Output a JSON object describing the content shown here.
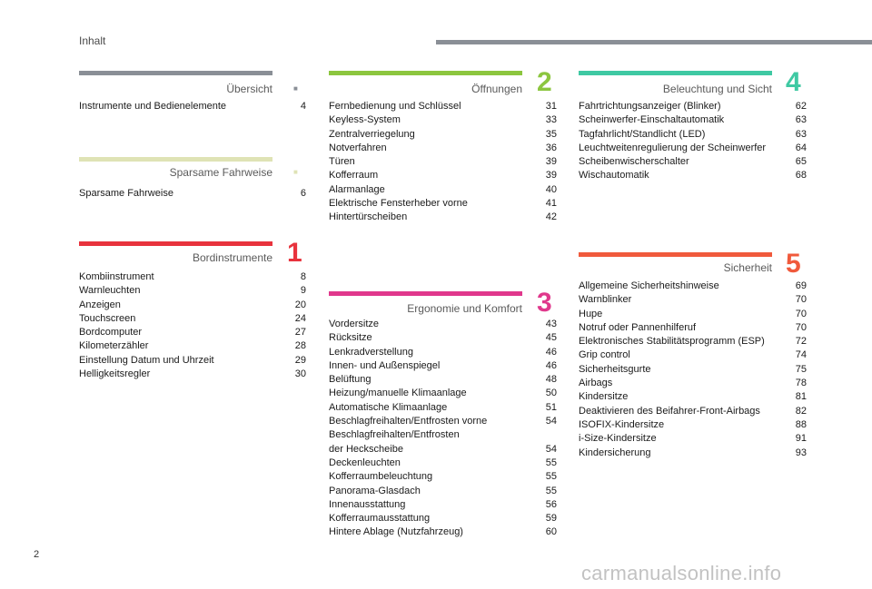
{
  "header": {
    "title": "Inhalt"
  },
  "page_number": "2",
  "watermark": "carmanualsonline.info",
  "sections": {
    "uebersicht": {
      "title": "Übersicht",
      "number": "",
      "color": "#8a8f96",
      "items": [
        {
          "label": "Instrumente und Bedienelemente",
          "page": "4"
        }
      ]
    },
    "sparsame": {
      "title": "Sparsame Fahrweise",
      "number": "",
      "color": "#dfe3b5",
      "items": [
        {
          "label": "Sparsame Fahrweise",
          "page": "6"
        }
      ]
    },
    "bordinstrumente": {
      "title": "Bordinstrumente",
      "number": "1",
      "color": "#e8333d",
      "items": [
        {
          "label": "Kombiinstrument",
          "page": "8"
        },
        {
          "label": "Warnleuchten",
          "page": "9"
        },
        {
          "label": "Anzeigen",
          "page": "20"
        },
        {
          "label": "Touchscreen",
          "page": "24"
        },
        {
          "label": "Bordcomputer",
          "page": "27"
        },
        {
          "label": "Kilometerzähler",
          "page": "28"
        },
        {
          "label": "Einstellung Datum und Uhrzeit",
          "page": "29"
        },
        {
          "label": "Helligkeitsregler",
          "page": "30"
        }
      ]
    },
    "oeffnungen": {
      "title": "Öffnungen",
      "number": "2",
      "color": "#8cc63f",
      "items": [
        {
          "label": "Fernbedienung und Schlüssel",
          "page": "31"
        },
        {
          "label": "Keyless-System",
          "page": "33"
        },
        {
          "label": "Zentralverriegelung",
          "page": "35"
        },
        {
          "label": "Notverfahren",
          "page": "36"
        },
        {
          "label": "Türen",
          "page": "39"
        },
        {
          "label": "Kofferraum",
          "page": "39"
        },
        {
          "label": "Alarmanlage",
          "page": "40"
        },
        {
          "label": "Elektrische Fensterheber vorne",
          "page": "41"
        },
        {
          "label": "Hintertürscheiben",
          "page": "42"
        }
      ]
    },
    "ergonomie": {
      "title": "Ergonomie und Komfort",
      "number": "3",
      "color": "#e0388c",
      "items": [
        {
          "label": "Vordersitze",
          "page": "43"
        },
        {
          "label": "Rücksitze",
          "page": "45"
        },
        {
          "label": "Lenkradverstellung",
          "page": "46"
        },
        {
          "label": "Innen- und Außenspiegel",
          "page": "46"
        },
        {
          "label": "Belüftung",
          "page": "48"
        },
        {
          "label": "Heizung/manuelle Klimaanlage",
          "page": "50"
        },
        {
          "label": "Automatische Klimaanlage",
          "page": "51"
        },
        {
          "label": "Beschlagfreihalten/Entfrosten vorne",
          "page": "54"
        },
        {
          "label": "Beschlagfreihalten/Entfrosten\nder Heckscheibe",
          "page": "54"
        },
        {
          "label": "Deckenleuchten",
          "page": "55"
        },
        {
          "label": "Kofferraumbeleuchtung",
          "page": "55"
        },
        {
          "label": "Panorama-Glasdach",
          "page": "55"
        },
        {
          "label": "Innenausstattung",
          "page": "56"
        },
        {
          "label": "Kofferraumausstattung",
          "page": "59"
        },
        {
          "label": "Hintere Ablage (Nutzfahrzeug)",
          "page": "60"
        }
      ]
    },
    "beleuchtung": {
      "title": "Beleuchtung und Sicht",
      "number": "4",
      "color": "#3fc9a3",
      "items": [
        {
          "label": "Fahrtrichtungsanzeiger (Blinker)",
          "page": "62"
        },
        {
          "label": "Scheinwerfer-Einschaltautomatik",
          "page": "63"
        },
        {
          "label": "Tagfahrlicht/Standlicht (LED)",
          "page": "63"
        },
        {
          "label": "Leuchtweitenregulierung der Scheinwerfer",
          "page": "64"
        },
        {
          "label": "Scheibenwischerschalter",
          "page": "65"
        },
        {
          "label": "Wischautomatik",
          "page": "68"
        }
      ]
    },
    "sicherheit": {
      "title": "Sicherheit",
      "number": "5",
      "color": "#f05a3c",
      "items": [
        {
          "label": "Allgemeine Sicherheitshinweise",
          "page": "69"
        },
        {
          "label": "Warnblinker",
          "page": "70"
        },
        {
          "label": "Hupe",
          "page": "70"
        },
        {
          "label": "Notruf oder Pannenhilferuf",
          "page": "70"
        },
        {
          "label": "Elektronisches Stabilitätsprogramm (ESP)",
          "page": "72"
        },
        {
          "label": "Grip control",
          "page": "74"
        },
        {
          "label": "Sicherheitsgurte",
          "page": "75"
        },
        {
          "label": "Airbags",
          "page": "78"
        },
        {
          "label": "Kindersitze",
          "page": "81"
        },
        {
          "label": "Deaktivieren des Beifahrer-Front-Airbags",
          "page": "82"
        },
        {
          "label": "ISOFIX-Kindersitze",
          "page": "88"
        },
        {
          "label": "i-Size-Kindersitze",
          "page": "91"
        },
        {
          "label": "Kindersicherung",
          "page": "93"
        }
      ]
    }
  }
}
